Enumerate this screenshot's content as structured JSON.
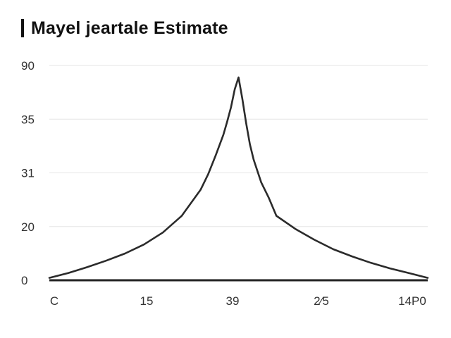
{
  "title": "Mayel jeartale Estimate",
  "chart_data": {
    "type": "line",
    "title": "Mayel jeartale Estimate",
    "xlabel": "",
    "ylabel": "",
    "x_tick_labels": [
      "C",
      "15",
      "39",
      "2⁄5",
      "14P0"
    ],
    "y_tick_labels": [
      "90",
      "35",
      "31",
      "20",
      "0"
    ],
    "ylim": [
      0,
      90
    ],
    "grid": true,
    "series": [
      {
        "x": [
          0,
          0.05,
          0.1,
          0.15,
          0.2,
          0.25,
          0.3,
          0.35,
          0.4,
          0.42,
          0.44,
          0.46,
          0.47,
          0.48,
          0.49,
          0.5,
          0.51,
          0.52,
          0.53,
          0.54,
          0.56,
          0.58,
          0.6,
          0.65,
          0.7,
          0.75,
          0.8,
          0.85,
          0.9,
          0.95,
          1.0
        ],
        "values": [
          1,
          3,
          5.5,
          8.2,
          11.2,
          15,
          20,
          27,
          38,
          44.5,
          52.5,
          61,
          66.5,
          72.5,
          80,
          85,
          76,
          66,
          57,
          50.5,
          41,
          34.5,
          27,
          21.5,
          17,
          13,
          10,
          7.3,
          5,
          3,
          1
        ]
      }
    ]
  }
}
